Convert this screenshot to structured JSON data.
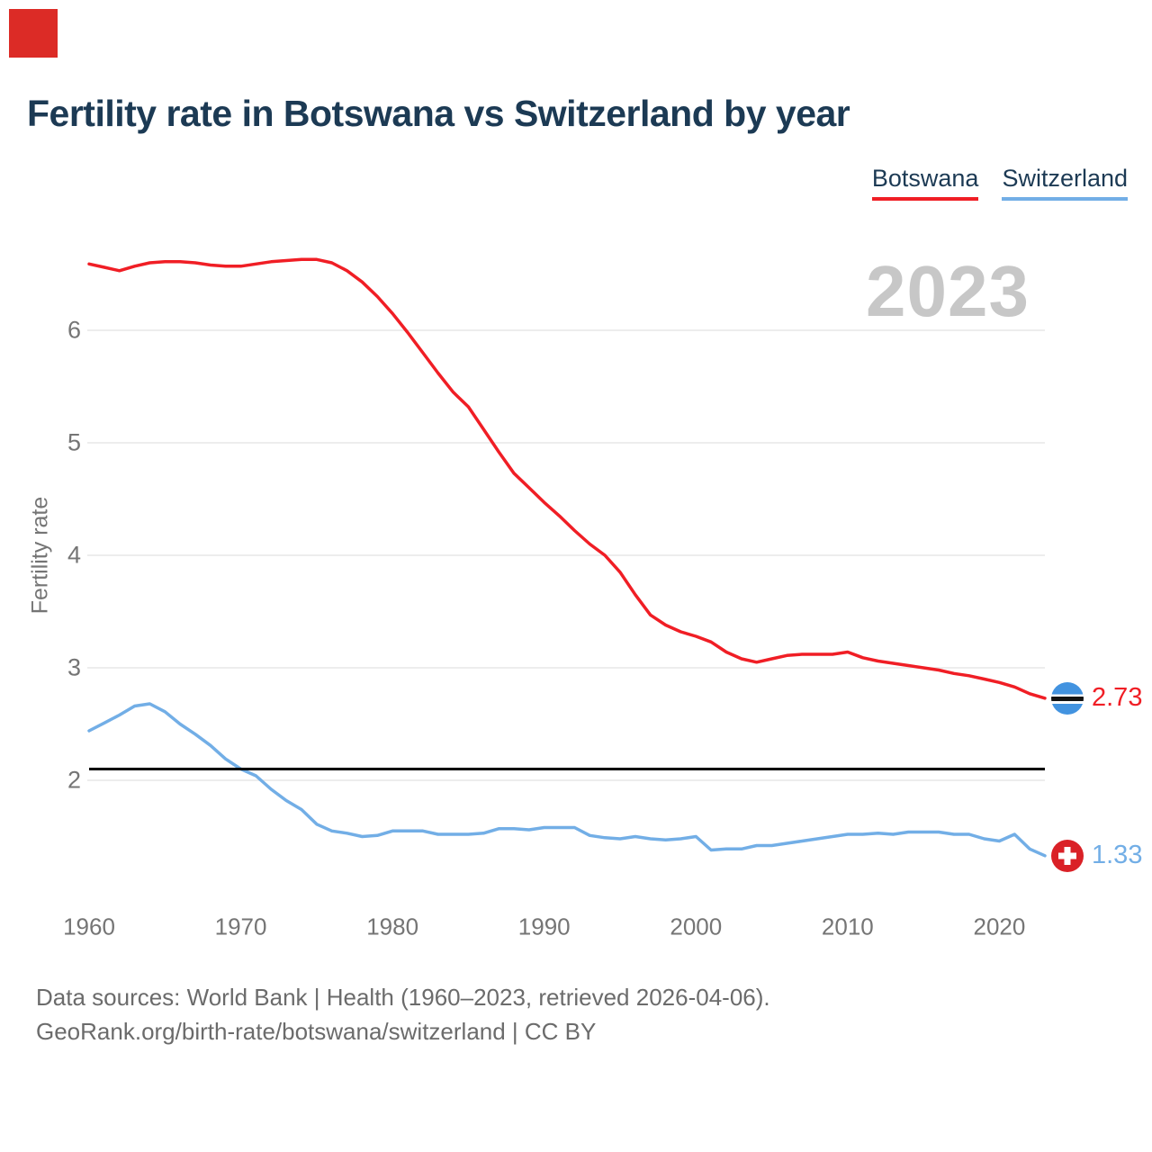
{
  "page": {
    "background": "#ffffff",
    "corner_marker_color": "#dc2b26"
  },
  "header": {
    "title": "Fertility rate in Botswana vs Switzerland by year",
    "title_color": "#1c3a54"
  },
  "legend": {
    "botswana": {
      "label": "Botswana",
      "color": "#f01e25"
    },
    "switzerland": {
      "label": "Switzerland",
      "color": "#72aee6"
    }
  },
  "watermark": "2023",
  "chart_data": {
    "type": "line",
    "title": "Fertility rate in Botswana vs Switzerland by year",
    "xlabel": "",
    "ylabel": "Fertility rate",
    "xlim": [
      1960,
      2023
    ],
    "ylim": [
      1.2,
      6.8
    ],
    "x_ticks": [
      1960,
      1970,
      1980,
      1990,
      2000,
      2010,
      2020
    ],
    "y_ticks": [
      2,
      3,
      4,
      5,
      6
    ],
    "grid": true,
    "grid_color": "#e7e7e7",
    "tick_color": "#757575",
    "legend_position": "top-right",
    "years": [
      1960,
      1961,
      1962,
      1963,
      1964,
      1965,
      1966,
      1967,
      1968,
      1969,
      1970,
      1971,
      1972,
      1973,
      1974,
      1975,
      1976,
      1977,
      1978,
      1979,
      1980,
      1981,
      1982,
      1983,
      1984,
      1985,
      1986,
      1987,
      1988,
      1989,
      1990,
      1991,
      1992,
      1993,
      1994,
      1995,
      1996,
      1997,
      1998,
      1999,
      2000,
      2001,
      2002,
      2003,
      2004,
      2005,
      2006,
      2007,
      2008,
      2009,
      2010,
      2011,
      2012,
      2013,
      2014,
      2015,
      2016,
      2017,
      2018,
      2019,
      2020,
      2021,
      2022,
      2023
    ],
    "series": [
      {
        "name": "Botswana",
        "color": "#f01e25",
        "values": [
          6.59,
          6.56,
          6.53,
          6.57,
          6.6,
          6.61,
          6.61,
          6.6,
          6.58,
          6.57,
          6.57,
          6.59,
          6.61,
          6.62,
          6.63,
          6.63,
          6.6,
          6.53,
          6.43,
          6.3,
          6.15,
          5.98,
          5.8,
          5.62,
          5.45,
          5.32,
          5.12,
          4.92,
          4.73,
          4.6,
          4.47,
          4.35,
          4.22,
          4.1,
          4.0,
          3.85,
          3.65,
          3.47,
          3.38,
          3.32,
          3.28,
          3.23,
          3.14,
          3.08,
          3.05,
          3.08,
          3.11,
          3.12,
          3.12,
          3.12,
          3.14,
          3.09,
          3.06,
          3.04,
          3.02,
          3.0,
          2.98,
          2.95,
          2.93,
          2.9,
          2.87,
          2.83,
          2.77,
          2.73
        ]
      },
      {
        "name": "Switzerland",
        "color": "#72aee6",
        "values": [
          2.44,
          2.51,
          2.58,
          2.66,
          2.68,
          2.61,
          2.5,
          2.41,
          2.31,
          2.19,
          2.1,
          2.04,
          1.92,
          1.82,
          1.74,
          1.61,
          1.55,
          1.53,
          1.5,
          1.51,
          1.55,
          1.55,
          1.55,
          1.52,
          1.52,
          1.52,
          1.53,
          1.57,
          1.57,
          1.56,
          1.58,
          1.58,
          1.58,
          1.51,
          1.49,
          1.48,
          1.5,
          1.48,
          1.47,
          1.48,
          1.5,
          1.38,
          1.39,
          1.39,
          1.42,
          1.42,
          1.44,
          1.46,
          1.48,
          1.5,
          1.52,
          1.52,
          1.53,
          1.52,
          1.54,
          1.54,
          1.54,
          1.52,
          1.52,
          1.48,
          1.46,
          1.52,
          1.39,
          1.33
        ]
      }
    ],
    "reference_line": {
      "value": 2.1,
      "color": "#000000"
    }
  },
  "end_labels": {
    "botswana": {
      "value": "2.73",
      "flag": "botswana-flag-icon"
    },
    "switzerland": {
      "value": "1.33",
      "flag": "switzerland-flag-icon"
    }
  },
  "footer": {
    "line1": "Data sources: World Bank | Health (1960–2023, retrieved 2026-04-06).",
    "line2": "GeoRank.org/birth-rate/botswana/switzerland | CC BY"
  }
}
